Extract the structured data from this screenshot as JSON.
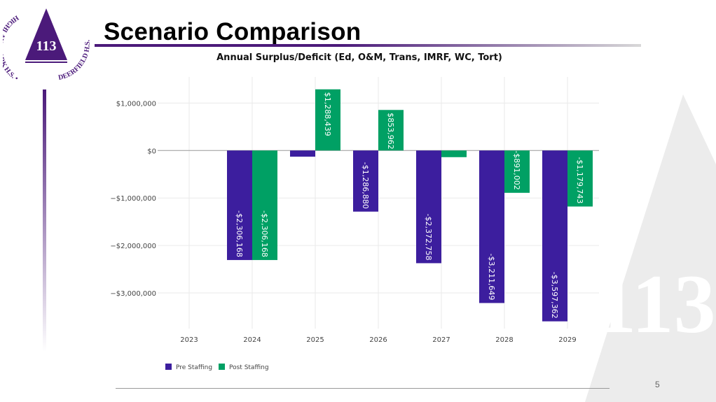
{
  "slide": {
    "title": "Scenario Comparison",
    "page_number": "5",
    "logo_text": "HIGHLAND PARK H.S. • DEERFIELD H.S. 113"
  },
  "colors": {
    "pre": "#3c1e9e",
    "post": "#00a064",
    "brand": "#4b1a7a"
  },
  "chart_data": {
    "type": "bar",
    "title": "Annual Surplus/Deficit (Ed, O&M, Trans, IMRF, WC, Tort)",
    "categories": [
      "2023",
      "2024",
      "2025",
      "2026",
      "2027",
      "2028",
      "2029"
    ],
    "series": [
      {
        "name": "Pre Staffing",
        "values": [
          0,
          -2306168,
          -130000,
          -1286880,
          -2372758,
          -3211649,
          -3597362
        ],
        "labels": [
          "",
          "-$2,306,168",
          "",
          "-$1,286,880",
          "-$2,372,758",
          "-$3,211,649",
          "-$3,597,362"
        ]
      },
      {
        "name": "Post Staffing",
        "values": [
          0,
          -2306168,
          1288439,
          853962,
          -140000,
          -891002,
          -1179743
        ],
        "labels": [
          "",
          "-$2,306,168",
          "$1,288,439",
          "$853,962",
          "",
          "-$891,002",
          "-$1,179,743"
        ]
      }
    ],
    "yticks": [
      1000000,
      0,
      -1000000,
      -2000000,
      -3000000
    ],
    "ytick_labels": [
      "$1,000,000",
      "$0",
      "−$1,000,000",
      "−$2,000,000",
      "−$3,000,000"
    ],
    "ylim": [
      -3750000,
      1550000
    ],
    "legend": "bottom-left",
    "grid": true
  }
}
